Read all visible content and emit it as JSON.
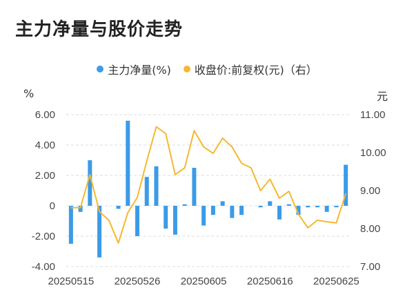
{
  "page": {
    "title": "主力净量与股价走势"
  },
  "legend": [
    {
      "label": "主力净量(%)",
      "color": "#3b9be8"
    },
    {
      "label": "收盘价:前复权(元)（右）",
      "color": "#f5b82e"
    }
  ],
  "units": {
    "left": "%",
    "right": "元"
  },
  "chart_data": {
    "type": "bar+line",
    "left_axis": {
      "min": -4,
      "max": 6,
      "ticks": [
        "-4.00",
        "-2.00",
        "0",
        "2.00",
        "4.00",
        "6.00"
      ]
    },
    "right_axis": {
      "min": 7,
      "max": 11,
      "ticks": [
        "7.00",
        "8.00",
        "9.00",
        "10.00",
        "11.00"
      ]
    },
    "x_tick_labels": [
      "20250515",
      "20250526",
      "20250605",
      "20250616",
      "20250625"
    ],
    "x_tick_index": [
      0,
      7,
      14,
      21,
      28
    ],
    "grid": true,
    "legend_position": "top",
    "series": [
      {
        "name": "主力净量(%)",
        "type": "bar",
        "axis": "left",
        "color": "#3b9be8",
        "values": [
          -2.5,
          -0.4,
          3.0,
          -3.4,
          0,
          -0.2,
          5.6,
          -2.0,
          1.9,
          2.6,
          -1.5,
          -1.9,
          0.1,
          2.5,
          -1.3,
          -0.6,
          0.3,
          -0.8,
          -0.6,
          0,
          -0.1,
          0.3,
          -0.9,
          0.1,
          -0.6,
          -0.1,
          -0.1,
          -0.4,
          -0.1,
          2.7
        ]
      },
      {
        "name": "收盘价:前复权(元)（右）",
        "type": "line",
        "axis": "right",
        "color": "#f5b82e",
        "values": [
          8.55,
          8.55,
          9.42,
          8.45,
          8.22,
          7.62,
          8.42,
          8.82,
          9.78,
          10.68,
          10.5,
          9.42,
          9.6,
          10.58,
          10.15,
          9.98,
          10.38,
          10.15,
          9.72,
          9.6,
          9.0,
          9.3,
          8.8,
          8.98,
          8.38,
          8.02,
          8.22,
          8.18,
          8.15,
          8.92
        ]
      }
    ]
  }
}
